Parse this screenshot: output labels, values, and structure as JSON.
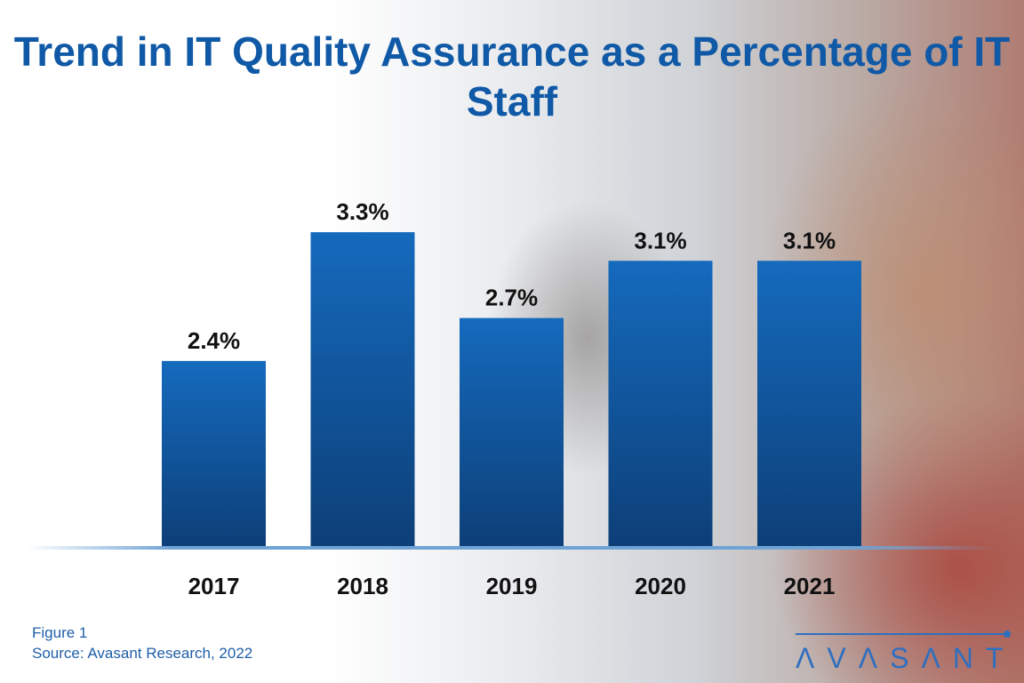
{
  "chart_data": {
    "type": "bar",
    "title": "Trend in IT Quality Assurance as a Percentage of IT Staff",
    "categories": [
      "2017",
      "2018",
      "2019",
      "2020",
      "2021"
    ],
    "values": [
      2.4,
      3.3,
      2.7,
      3.1,
      3.1
    ],
    "data_labels": [
      "2.4%",
      "3.3%",
      "2.7%",
      "3.1%",
      "3.1%"
    ],
    "xlabel": "",
    "ylabel": "",
    "ylim": [
      1.1,
      3.4
    ],
    "grid": false,
    "bar_color": "#1565b5"
  },
  "footer": {
    "figure": "Figure 1",
    "source": "Source: Avasant Research, 2022"
  },
  "logo": {
    "text": "AVASANT"
  }
}
